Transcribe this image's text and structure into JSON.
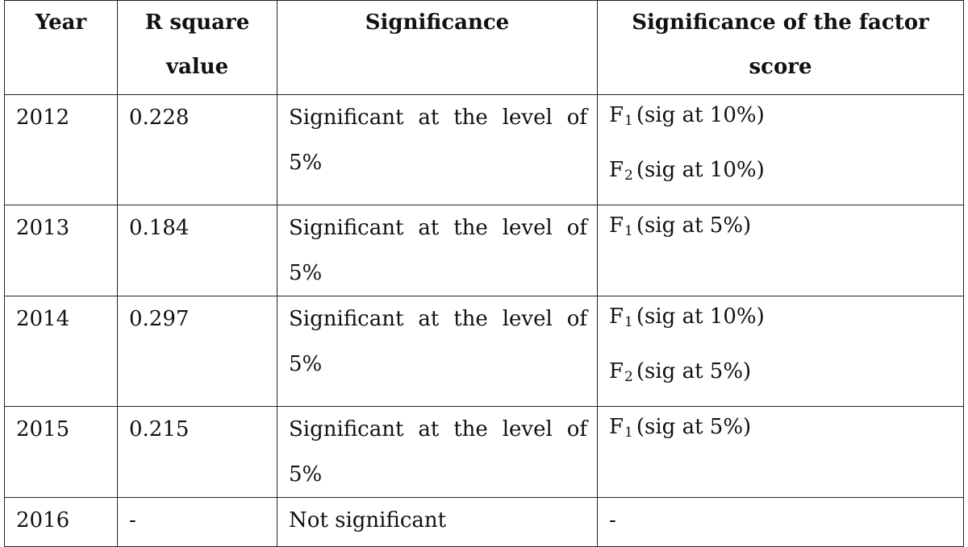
{
  "table": {
    "headers": {
      "year": "Year",
      "r_square": "R square value",
      "significance": "Significance",
      "factor_score": "Significance of the factor score"
    },
    "rows": [
      {
        "year": "2012",
        "r_square": "0.228",
        "significance": "Significant at the level of 5%",
        "factors": [
          {
            "base": "F",
            "sub": "1",
            "text": "(sig at 10%)"
          },
          {
            "base": "F",
            "sub": "2",
            "text": "(sig at 10%)"
          }
        ]
      },
      {
        "year": "2013",
        "r_square": "0.184",
        "significance": "Significant at the level of 5%",
        "factors": [
          {
            "base": "F",
            "sub": "1",
            "text": "(sig at 5%)"
          }
        ]
      },
      {
        "year": "2014",
        "r_square": "0.297",
        "significance": "Significant at the level of 5%",
        "factors": [
          {
            "base": "F",
            "sub": "1",
            "text": "(sig at 10%)"
          },
          {
            "base": "F",
            "sub": "2",
            "text": "(sig at 5%)"
          }
        ]
      },
      {
        "year": "2015",
        "r_square": "0.215",
        "significance": "Significant at the level of 5%",
        "factors": [
          {
            "base": "F",
            "sub": "1",
            "text": "(sig at 5%)"
          }
        ]
      },
      {
        "year": "2016",
        "r_square": "-",
        "significance": "Not significant",
        "factors_dash": "-"
      }
    ]
  }
}
